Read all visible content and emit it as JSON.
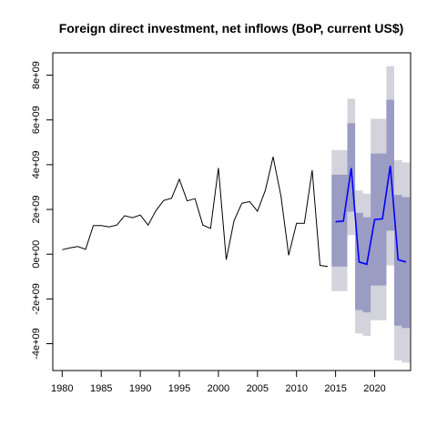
{
  "chart_data": {
    "type": "line",
    "title": "Foreign direct investment, net inflows (BoP, current US$)",
    "xlabel": "",
    "ylabel": "",
    "xlim": [
      1978.8,
      2024.6
    ],
    "ylim": [
      -5200000000.0,
      9000000000.0
    ],
    "x_ticks": [
      1980,
      1985,
      1990,
      1995,
      2000,
      2005,
      2010,
      2015,
      2020
    ],
    "x_tick_labels": [
      "1980",
      "1985",
      "1990",
      "1995",
      "2000",
      "2005",
      "2010",
      "2015",
      "2020"
    ],
    "y_ticks": [
      -4000000000.0,
      -2000000000.0,
      0,
      2000000000.0,
      4000000000.0,
      6000000000.0,
      8000000000.0
    ],
    "y_tick_labels": [
      "-4e+09",
      "-2e+09",
      "0e+00",
      "2e+09",
      "4e+09",
      "6e+09",
      "8e+09"
    ],
    "grid": false,
    "legend": "none",
    "colors": {
      "history": "#000000",
      "forecast": "#0000ff",
      "band_80": "#9a9cc4",
      "band_95": "#d3d3dc"
    },
    "series": [
      {
        "role": "history",
        "x": [
          1980,
          1981,
          1982,
          1983,
          1984,
          1985,
          1986,
          1987,
          1988,
          1989,
          1990,
          1991,
          1992,
          1993,
          1994,
          1995,
          1996,
          1997,
          1998,
          1999,
          2000,
          2001,
          2002,
          2003,
          2004,
          2005,
          2006,
          2007,
          2008,
          2009,
          2010,
          2011,
          2012,
          2013,
          2014
        ],
        "y": [
          200000000.0,
          280000000.0,
          340000000.0,
          220000000.0,
          1280000000.0,
          1280000000.0,
          1220000000.0,
          1300000000.0,
          1720000000.0,
          1630000000.0,
          1750000000.0,
          1300000000.0,
          1950000000.0,
          2400000000.0,
          2500000000.0,
          3350000000.0,
          2380000000.0,
          2480000000.0,
          1300000000.0,
          1150000000.0,
          3850000000.0,
          -250000000.0,
          1500000000.0,
          2280000000.0,
          2350000000.0,
          1920000000.0,
          2850000000.0,
          4350000000.0,
          2600000000.0,
          -50000000.0,
          1380000000.0,
          1380000000.0,
          3750000000.0,
          -500000000.0,
          -550000000.0
        ]
      },
      {
        "role": "forecast",
        "x": [
          2015,
          2016,
          2017,
          2018,
          2019,
          2020,
          2021,
          2022,
          2023,
          2024
        ],
        "y": [
          1450000000.0,
          1480000000.0,
          3850000000.0,
          -350000000.0,
          -450000000.0,
          1550000000.0,
          1580000000.0,
          3950000000.0,
          -250000000.0,
          -350000000.0
        ],
        "lo80": [
          -550000000.0,
          -550000000.0,
          1900000000.0,
          -2500000000.0,
          -2600000000.0,
          -1400000000.0,
          -1400000000.0,
          1050000000.0,
          -3200000000.0,
          -3300000000.0
        ],
        "hi80": [
          3550000000.0,
          3550000000.0,
          5850000000.0,
          1850000000.0,
          1650000000.0,
          4500000000.0,
          4500000000.0,
          6900000000.0,
          2650000000.0,
          2550000000.0
        ],
        "lo95": [
          -1650000000.0,
          -1650000000.0,
          850000000.0,
          -3550000000.0,
          -3650000000.0,
          -2950000000.0,
          -2950000000.0,
          -500000000.0,
          -4750000000.0,
          -4850000000.0
        ],
        "hi95": [
          4650000000.0,
          4650000000.0,
          6950000000.0,
          2850000000.0,
          2700000000.0,
          6050000000.0,
          6050000000.0,
          8400000000.0,
          4200000000.0,
          4100000000.0
        ]
      }
    ]
  }
}
